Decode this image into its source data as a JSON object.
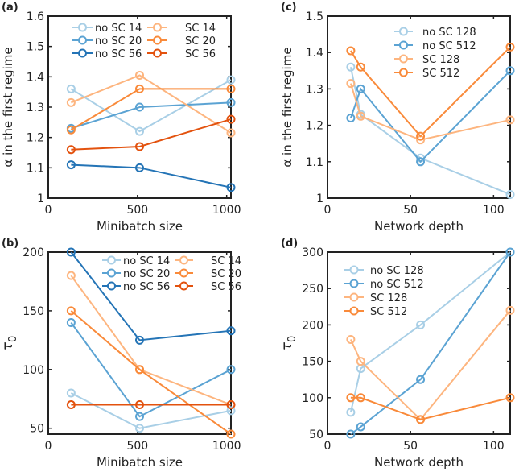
{
  "chart_data": [
    {
      "panel": "(a)",
      "type": "line",
      "xlabel": "Minibatch size",
      "ylabel": "α in the first regime",
      "x": [
        128,
        512,
        1024
      ],
      "xlim": [
        0,
        1024
      ],
      "ylim": [
        1,
        1.6
      ],
      "xticks": [
        0,
        500,
        1000
      ],
      "yticks": [
        1,
        1.1,
        1.2,
        1.3,
        1.4,
        1.5,
        1.6
      ],
      "legend": {
        "position": "top-center",
        "columns": 2
      },
      "series": [
        {
          "name": "no SC 14",
          "color": "#a9cfe6",
          "values": [
            1.36,
            1.22,
            1.39
          ]
        },
        {
          "name": "no SC 20",
          "color": "#5ba3d3",
          "values": [
            1.23,
            1.3,
            1.315
          ]
        },
        {
          "name": "no SC 56",
          "color": "#2474b6",
          "values": [
            1.11,
            1.1,
            1.035
          ]
        },
        {
          "name": "SC 14",
          "color": "#fdb57f",
          "values": [
            1.315,
            1.405,
            1.215
          ]
        },
        {
          "name": "SC 20",
          "color": "#f98a3a",
          "values": [
            1.225,
            1.36,
            1.36
          ]
        },
        {
          "name": "SC 56",
          "color": "#e3520e",
          "values": [
            1.16,
            1.17,
            1.26
          ]
        }
      ]
    },
    {
      "panel": "(b)",
      "type": "line",
      "xlabel": "Minibatch size",
      "ylabel": "τ0",
      "x": [
        128,
        512,
        1024
      ],
      "xlim": [
        0,
        1024
      ],
      "ylim": [
        45,
        200
      ],
      "xticks": [
        0,
        500,
        1000
      ],
      "yticks": [
        50,
        100,
        150,
        200
      ],
      "legend": {
        "position": "top-right",
        "columns": 2
      },
      "series": [
        {
          "name": "no SC 14",
          "color": "#a9cfe6",
          "values": [
            80,
            50,
            65
          ]
        },
        {
          "name": "no SC 20",
          "color": "#5ba3d3",
          "values": [
            140,
            60,
            100
          ]
        },
        {
          "name": "no SC 56",
          "color": "#2474b6",
          "values": [
            200,
            125,
            133
          ]
        },
        {
          "name": "SC 14",
          "color": "#fdb57f",
          "values": [
            180,
            100,
            70
          ]
        },
        {
          "name": "SC 20",
          "color": "#f98a3a",
          "values": [
            150,
            100,
            45
          ]
        },
        {
          "name": "SC 56",
          "color": "#e3520e",
          "values": [
            70,
            70,
            70
          ]
        }
      ]
    },
    {
      "panel": "(c)",
      "type": "line",
      "xlabel": "Network depth",
      "ylabel": "α in the first regime",
      "x": [
        14,
        20,
        56,
        110
      ],
      "xlim": [
        0,
        110
      ],
      "ylim": [
        1,
        1.5
      ],
      "xticks": [
        0,
        50,
        100
      ],
      "yticks": [
        1,
        1.1,
        1.2,
        1.3,
        1.4,
        1.5
      ],
      "legend": {
        "position": "top-right",
        "columns": 1
      },
      "series": [
        {
          "name": "no SC 128",
          "color": "#a9cfe6",
          "values": [
            1.36,
            1.23,
            1.11,
            1.01
          ]
        },
        {
          "name": "no SC 512",
          "color": "#5ba3d3",
          "values": [
            1.22,
            1.3,
            1.1,
            1.35
          ]
        },
        {
          "name": "SC 128",
          "color": "#fdb57f",
          "values": [
            1.315,
            1.225,
            1.16,
            1.215
          ]
        },
        {
          "name": "SC 512",
          "color": "#f98a3a",
          "values": [
            1.405,
            1.36,
            1.17,
            1.415
          ]
        }
      ]
    },
    {
      "panel": "(d)",
      "type": "line",
      "xlabel": "Network depth",
      "ylabel": "τ0",
      "x": [
        14,
        20,
        56,
        110
      ],
      "xlim": [
        0,
        110
      ],
      "ylim": [
        50,
        300
      ],
      "xticks": [
        0,
        50,
        100
      ],
      "yticks": [
        50,
        100,
        150,
        200,
        250,
        300
      ],
      "legend": {
        "position": "top-left",
        "columns": 1
      },
      "series": [
        {
          "name": "no SC 128",
          "color": "#a9cfe6",
          "values": [
            80,
            140,
            200,
            300
          ]
        },
        {
          "name": "no SC 512",
          "color": "#5ba3d3",
          "values": [
            50,
            60,
            125,
            300
          ]
        },
        {
          "name": "SC 128",
          "color": "#fdb57f",
          "values": [
            180,
            150,
            70,
            220
          ]
        },
        {
          "name": "SC 512",
          "color": "#f98a3a",
          "values": [
            100,
            100,
            70,
            100
          ]
        }
      ]
    }
  ]
}
